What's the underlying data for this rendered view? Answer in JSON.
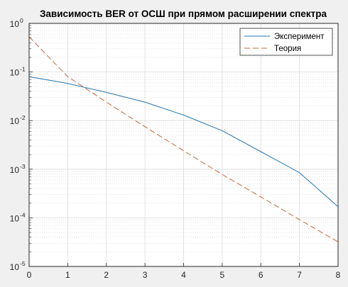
{
  "chart_data": {
    "type": "line",
    "title": "Зависимость BER от ОСШ при прямом расширении спектра",
    "xlabel": "",
    "ylabel": "",
    "xlim": [
      0,
      8
    ],
    "ylim": [
      1e-05,
      1
    ],
    "y_scale": "log",
    "grid": true,
    "minor_grid": true,
    "legend_position": "top-right",
    "x_ticks": [
      "0",
      "1",
      "2",
      "3",
      "4",
      "5",
      "6",
      "7",
      "8"
    ],
    "x_tick_values": [
      0,
      1,
      2,
      3,
      4,
      5,
      6,
      7,
      8
    ],
    "y_tick_exponents": [
      0,
      -1,
      -2,
      -3,
      -4,
      -5
    ],
    "y_tick_base": "10",
    "series": [
      {
        "name": "Эксперимент",
        "color": "#1f77b4",
        "dash": "solid",
        "x": [
          0,
          1,
          2,
          3,
          4,
          5,
          6,
          7,
          8
        ],
        "y": [
          0.08,
          0.058,
          0.038,
          0.024,
          0.013,
          0.0062,
          0.0023,
          0.00085,
          0.00017
        ]
      },
      {
        "name": "Теория",
        "color": "#c8643c",
        "dash": "dashed",
        "x": [
          0,
          1,
          2,
          3,
          4,
          5,
          6,
          7,
          8
        ],
        "y": [
          0.53,
          0.08,
          0.024,
          0.0075,
          0.0024,
          0.00078,
          0.00027,
          9.2e-05,
          3.2e-05
        ]
      }
    ]
  }
}
